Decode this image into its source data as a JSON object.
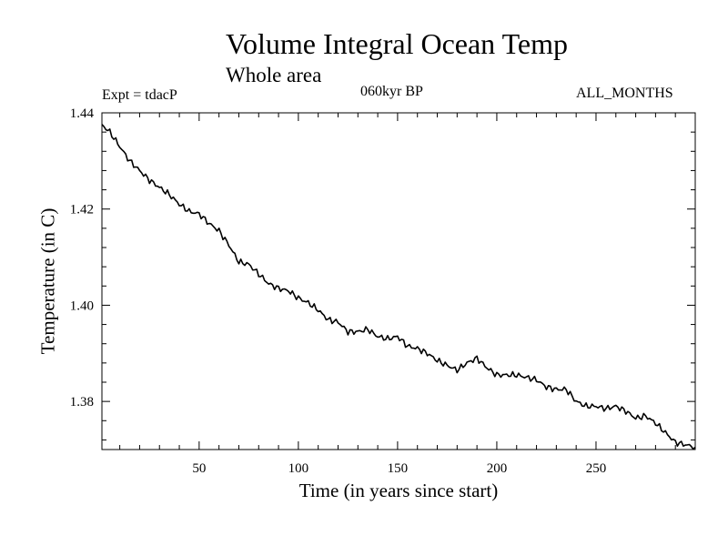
{
  "chart_data": {
    "type": "line",
    "title": "Volume Integral Ocean Temp",
    "subtitle": "Whole area",
    "experiment_label": "Expt = tdacP",
    "period_label": "060kyr BP",
    "months_label": "ALL_MONTHS",
    "xlabel": "Time (in years since start)",
    "ylabel": "Temperature (in C)",
    "xlim": [
      1,
      300
    ],
    "ylim": [
      1.37,
      1.44
    ],
    "x_ticks": [
      50,
      100,
      150,
      200,
      250
    ],
    "y_ticks": [
      1.38,
      1.4,
      1.42,
      1.44
    ],
    "y_tick_labels": [
      "1.38",
      "1.40",
      "1.42",
      "1.44"
    ],
    "series": [
      {
        "name": "Volume Integral Ocean Temp",
        "x": [
          1,
          5,
          10,
          15,
          20,
          25,
          30,
          35,
          40,
          45,
          50,
          55,
          60,
          65,
          70,
          75,
          80,
          85,
          90,
          95,
          100,
          105,
          110,
          115,
          120,
          125,
          130,
          135,
          140,
          145,
          150,
          155,
          160,
          165,
          170,
          175,
          180,
          185,
          190,
          195,
          200,
          205,
          210,
          215,
          220,
          225,
          230,
          235,
          240,
          245,
          250,
          255,
          260,
          265,
          270,
          275,
          280,
          285,
          290,
          295,
          300
        ],
        "values": [
          1.4375,
          1.436,
          1.433,
          1.43,
          1.428,
          1.426,
          1.4245,
          1.423,
          1.421,
          1.4195,
          1.419,
          1.417,
          1.4155,
          1.4125,
          1.409,
          1.4085,
          1.4065,
          1.4045,
          1.4035,
          1.403,
          1.4015,
          1.4005,
          1.399,
          1.397,
          1.3965,
          1.3945,
          1.3945,
          1.395,
          1.3935,
          1.393,
          1.3935,
          1.3915,
          1.391,
          1.39,
          1.3885,
          1.3875,
          1.3865,
          1.388,
          1.389,
          1.387,
          1.3855,
          1.3855,
          1.3855,
          1.385,
          1.3845,
          1.383,
          1.3825,
          1.3825,
          1.38,
          1.379,
          1.379,
          1.3785,
          1.379,
          1.378,
          1.3765,
          1.377,
          1.3755,
          1.3735,
          1.3715,
          1.371,
          1.3705
        ]
      }
    ]
  }
}
